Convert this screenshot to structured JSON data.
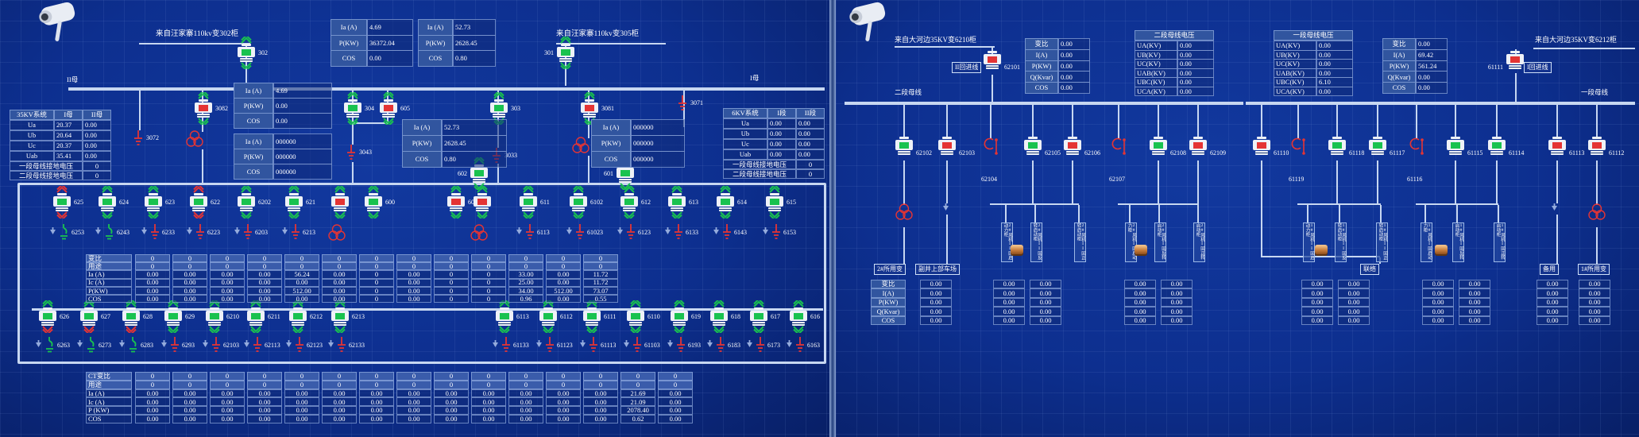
{
  "colors": {
    "green": "#19c24f",
    "red": "#e43434",
    "bus": "#c7d7f1",
    "background": "#0d2f8f"
  },
  "left": {
    "incomer_a": {
      "title": "来自汪家寨110kv变302柜",
      "breaker": "302"
    },
    "incomer_b": {
      "title": "来自汪家寨110kv变305柜",
      "breaker": "301"
    },
    "bus_left_label": "II母",
    "bus_right_label": "I母",
    "sys35": {
      "title": "35KV系统",
      "cols": [
        "I母",
        "II母"
      ],
      "rows": [
        [
          "Ua",
          "20.37",
          "0.00"
        ],
        [
          "Ub",
          "20.64",
          "0.00"
        ],
        [
          "Uc",
          "20.37",
          "0.00"
        ],
        [
          "Uab",
          "35.41",
          "0.00"
        ]
      ],
      "gnd": [
        [
          "一段母线接地电压",
          "0"
        ],
        [
          "二段母线接地电压",
          "0"
        ]
      ]
    },
    "sys6": {
      "title": "6KV系统",
      "cols": [
        "I段",
        "II段"
      ],
      "rows": [
        [
          "Ua",
          "0.00",
          "0.00"
        ],
        [
          "Ub",
          "0.00",
          "0.00"
        ],
        [
          "Uc",
          "0.00",
          "0.00"
        ],
        [
          "Uab",
          "0.00",
          "0.00"
        ]
      ],
      "gnd": [
        [
          "一段母线接地电压",
          "0"
        ],
        [
          "二段母线接地电压",
          "0"
        ]
      ]
    },
    "meter_top_a": [
      [
        "Ia (A)",
        "4.69"
      ],
      [
        "P(KW)",
        "36372.04"
      ],
      [
        "COS",
        "0.00"
      ]
    ],
    "meter_top_b": [
      [
        "Ia (A)",
        "52.73"
      ],
      [
        "P(KW)",
        "2628.45"
      ],
      [
        "COS",
        "0.80"
      ]
    ],
    "meter_bus_a": [
      [
        "Ia (A)",
        "4.69"
      ],
      [
        "P(KW)",
        "0.00"
      ],
      [
        "COS",
        "0.00"
      ]
    ],
    "meter_bus_b": [
      [
        "Ia (A)",
        "000000"
      ],
      [
        "P(KW)",
        "000000"
      ],
      [
        "COS",
        "000000"
      ]
    ],
    "meter_mid_a": [
      [
        "Ia (A)",
        "52.73"
      ],
      [
        "P(KW)",
        "2628.45"
      ],
      [
        "COS",
        "0.80"
      ]
    ],
    "meter_mid_b": [
      [
        "Ia (A)",
        "000000"
      ],
      [
        "P(KW)",
        "000000"
      ],
      [
        "COS",
        "000000"
      ]
    ],
    "aux": [
      {
        "id": "3082",
        "kind": "breaker",
        "color": "red"
      },
      {
        "id": "304",
        "kind": "breaker",
        "color": "green"
      },
      {
        "id": "605",
        "kind": "breaker",
        "color": "red"
      },
      {
        "id": "303",
        "kind": "breaker",
        "color": "green"
      },
      {
        "id": "3081",
        "kind": "breaker",
        "color": "red"
      },
      {
        "id": "602",
        "kind": "breaker",
        "color": "green",
        "label_left": true
      },
      {
        "id": "601",
        "kind": "breaker",
        "color": "green",
        "label_left": true
      },
      {
        "id": "3072",
        "kind": "ground",
        "color": "red"
      },
      {
        "id": "3043",
        "kind": "ground",
        "color": "red"
      },
      {
        "id": "3033",
        "kind": "ground",
        "color": "red"
      },
      {
        "id": "3071",
        "kind": "ground",
        "color": "red"
      }
    ],
    "row1": [
      {
        "id": "625",
        "color": "green",
        "arrow_top": "red",
        "arrow_bottom": "red",
        "sub": {
          "id": "6253",
          "kind": "switch",
          "color": "green"
        }
      },
      {
        "id": "624",
        "color": "green",
        "arrow_top": "green",
        "arrow_bottom": "green",
        "sub": {
          "id": "6243",
          "kind": "switch",
          "color": "green"
        }
      },
      {
        "id": "623",
        "color": "green",
        "arrow_top": "green",
        "arrow_bottom": "green",
        "sub": {
          "id": "6233",
          "kind": "ground",
          "color": "red"
        }
      },
      {
        "id": "622",
        "color": "green",
        "arrow_top": "red",
        "arrow_bottom": "red",
        "sub": {
          "id": "6223",
          "kind": "ground",
          "color": "red"
        }
      },
      {
        "id": "6202",
        "color": "green",
        "arrow_top": "green",
        "arrow_bottom": "green",
        "sub": {
          "id": "6203",
          "kind": "ground",
          "color": "red"
        }
      },
      {
        "id": "621",
        "color": "green",
        "arrow_top": "green",
        "arrow_bottom": "green",
        "sub": {
          "id": "6213",
          "kind": "ground",
          "color": "red"
        }
      },
      {
        "id": "",
        "color": "red",
        "arrow_top": "green",
        "arrow_bottom": "green",
        "sub": {
          "id": "",
          "kind": "transformer",
          "color": "red"
        }
      },
      {
        "id": "600",
        "color": "green",
        "arrow_top": "green",
        "arrow_bottom": "green",
        "sub": null
      },
      {
        "id": "601",
        "color": "red",
        "arrow_top": "green",
        "arrow_bottom": "green",
        "sub": null
      },
      {
        "id": "",
        "color": "red",
        "arrow_top": "green",
        "arrow_bottom": "green",
        "sub": {
          "id": "",
          "kind": "transformer",
          "color": "red"
        }
      },
      {
        "id": "611",
        "color": "green",
        "arrow_top": "green",
        "arrow_bottom": "green",
        "sub": {
          "id": "6113",
          "kind": "ground",
          "color": "red"
        }
      },
      {
        "id": "6102",
        "color": "green",
        "arrow_top": "green",
        "arrow_bottom": "green",
        "sub": {
          "id": "61023",
          "kind": "ground",
          "color": "red"
        }
      },
      {
        "id": "612",
        "color": "green",
        "arrow_top": "green",
        "arrow_bottom": "green",
        "sub": {
          "id": "6123",
          "kind": "ground",
          "color": "red"
        }
      },
      {
        "id": "613",
        "color": "green",
        "arrow_top": "green",
        "arrow_bottom": "green",
        "sub": {
          "id": "6133",
          "kind": "ground",
          "color": "red"
        }
      },
      {
        "id": "614",
        "color": "green",
        "arrow_top": "green",
        "arrow_bottom": "green",
        "sub": {
          "id": "6143",
          "kind": "ground",
          "color": "red"
        }
      },
      {
        "id": "615",
        "color": "green",
        "arrow_top": "green",
        "arrow_bottom": "green",
        "sub": {
          "id": "6153",
          "kind": "ground",
          "color": "red"
        }
      }
    ],
    "row2": [
      {
        "id": "626",
        "color": "green",
        "arrow_top": "green",
        "arrow_bottom": "red",
        "sub": {
          "id": "6263",
          "kind": "switch",
          "color": "green"
        }
      },
      {
        "id": "627",
        "color": "green",
        "arrow_top": "green",
        "arrow_bottom": "red",
        "sub": {
          "id": "6273",
          "kind": "switch",
          "color": "green"
        }
      },
      {
        "id": "628",
        "color": "green",
        "arrow_top": "green",
        "arrow_bottom": "red",
        "sub": {
          "id": "6283",
          "kind": "switch",
          "color": "green"
        }
      },
      {
        "id": "629",
        "color": "green",
        "arrow_top": "green",
        "arrow_bottom": "green",
        "sub": {
          "id": "6293",
          "kind": "ground",
          "color": "red"
        }
      },
      {
        "id": "6210",
        "color": "green",
        "arrow_top": "green",
        "arrow_bottom": "green",
        "sub": {
          "id": "62103",
          "kind": "ground",
          "color": "red"
        }
      },
      {
        "id": "6211",
        "color": "green",
        "arrow_top": "green",
        "arrow_bottom": "green",
        "sub": {
          "id": "62113",
          "kind": "ground",
          "color": "red"
        }
      },
      {
        "id": "6212",
        "color": "green",
        "arrow_top": "green",
        "arrow_bottom": "green",
        "sub": {
          "id": "62123",
          "kind": "ground",
          "color": "red"
        }
      },
      {
        "id": "6213",
        "color": "green",
        "arrow_top": "green",
        "arrow_bottom": "green",
        "sub": {
          "id": "62133",
          "kind": "ground",
          "color": "red"
        }
      },
      {
        "id": "6113",
        "color": "green",
        "arrow_top": "green",
        "arrow_bottom": "green",
        "sub": {
          "id": "61133",
          "kind": "ground",
          "color": "red"
        }
      },
      {
        "id": "6112",
        "color": "green",
        "arrow_top": "green",
        "arrow_bottom": "green",
        "sub": {
          "id": "61123",
          "kind": "ground",
          "color": "red"
        }
      },
      {
        "id": "6111",
        "color": "green",
        "arrow_top": "green",
        "arrow_bottom": "green",
        "sub": {
          "id": "61113",
          "kind": "ground",
          "color": "red"
        }
      },
      {
        "id": "6110",
        "color": "green",
        "arrow_top": "green",
        "arrow_bottom": "green",
        "sub": {
          "id": "61103",
          "kind": "ground",
          "color": "red"
        }
      },
      {
        "id": "619",
        "color": "green",
        "arrow_top": "green",
        "arrow_bottom": "green",
        "sub": {
          "id": "6193",
          "kind": "ground",
          "color": "red"
        }
      },
      {
        "id": "618",
        "color": "green",
        "arrow_top": "green",
        "arrow_bottom": "green",
        "sub": {
          "id": "6183",
          "kind": "ground",
          "color": "red"
        }
      },
      {
        "id": "617",
        "color": "green",
        "arrow_top": "green",
        "arrow_bottom": "green",
        "sub": {
          "id": "6173",
          "kind": "ground",
          "color": "red"
        }
      },
      {
        "id": "616",
        "color": "green",
        "arrow_top": "green",
        "arrow_bottom": "green",
        "sub": {
          "id": "6163",
          "kind": "ground",
          "color": "red"
        }
      }
    ],
    "mid_table": {
      "row_labels": [
        "变比",
        "用途",
        "Ia (A)",
        "Ic (A)",
        "P(KW)",
        "COS"
      ],
      "columns": [
        [
          "0",
          "0",
          "0.00",
          "0.00",
          "0.00",
          "0.00"
        ],
        [
          "0",
          "0",
          "0.00",
          "0.00",
          "0.00",
          "0.00"
        ],
        [
          "0",
          "0",
          "0.00",
          "0.00",
          "0.00",
          "0.00"
        ],
        [
          "0",
          "0",
          "0.00",
          "0.00",
          "0.00",
          "0.00"
        ],
        [
          "0",
          "0",
          "56.24",
          "0.00",
          "512.00",
          "0.00"
        ],
        [
          "0",
          "0",
          "0.00",
          "0.00",
          "0.00",
          "0.00"
        ],
        [
          "0",
          "0",
          "0",
          "0",
          "0",
          "0"
        ],
        [
          "0",
          "0",
          "0.00",
          "0.00",
          "0.00",
          "0.00"
        ],
        [
          "0",
          "0",
          "0",
          "0",
          "0",
          "0"
        ],
        [
          "0",
          "0",
          "0",
          "0",
          "0",
          "0"
        ],
        [
          "0",
          "0",
          "33.00",
          "25.00",
          "34.00",
          "0.96"
        ],
        [
          "0",
          "0",
          "0.00",
          "0.00",
          "512.00",
          "0.00"
        ],
        [
          "0",
          "0",
          "11.72",
          "11.72",
          "73.07",
          "0.55"
        ]
      ]
    },
    "bottom_table": {
      "row_labels": [
        "CT变比",
        "用途",
        "Ia (A)",
        "Ic (A)",
        "P (KW)",
        "COS"
      ],
      "columns": [
        [
          "0",
          "0",
          "0.00",
          "0.00",
          "0.00",
          "0.00"
        ],
        [
          "0",
          "0",
          "0.00",
          "0.00",
          "0.00",
          "0.00"
        ],
        [
          "0",
          "0",
          "0.00",
          "0.00",
          "0.00",
          "0.00"
        ],
        [
          "0",
          "0",
          "0.00",
          "0.00",
          "0.00",
          "0.00"
        ],
        [
          "0",
          "0",
          "0.00",
          "0.00",
          "0.00",
          "0.00"
        ],
        [
          "0",
          "0",
          "0.00",
          "0.00",
          "0.00",
          "0.00"
        ],
        [
          "0",
          "0",
          "0.00",
          "0.00",
          "0.00",
          "0.00"
        ],
        [
          "0",
          "0",
          "0.00",
          "0.00",
          "0.00",
          "0.00"
        ],
        [
          "0",
          "0",
          "0.00",
          "0.00",
          "0.00",
          "0.00"
        ],
        [
          "0",
          "0",
          "0.00",
          "0.00",
          "0.00",
          "0.00"
        ],
        [
          "0",
          "0",
          "0.00",
          "0.00",
          "0.00",
          "0.00"
        ],
        [
          "0",
          "0",
          "0.00",
          "0.00",
          "0.00",
          "0.00"
        ],
        [
          "0",
          "0",
          "0.00",
          "0.00",
          "0.00",
          "0.00"
        ],
        [
          "0",
          "0",
          "21.69",
          "21.09",
          "2078.40",
          "0.62"
        ],
        [
          "0",
          "0",
          "0.00",
          "0.00",
          "0.00",
          "0.00"
        ]
      ]
    }
  },
  "right": {
    "incomer_a": {
      "title": "来自大河边35KV变6210柜",
      "tag": "II回进线",
      "breaker": "62101"
    },
    "incomer_b": {
      "title": "来自大河边35KV变6212柜",
      "tag": "I回进线",
      "breaker": "61111"
    },
    "bus_left_label": "二段母线",
    "bus_right_label": "一段母线",
    "volt2": {
      "title": "二段母线电压",
      "rows": [
        [
          "UA(KV)",
          "0.00"
        ],
        [
          "UB(KV)",
          "0.00"
        ],
        [
          "UC(KV)",
          "0.00"
        ],
        [
          "UAB(KV)",
          "0.00"
        ],
        [
          "UBC(KV)",
          "0.00"
        ],
        [
          "UCA(KV)",
          "0.00"
        ]
      ]
    },
    "volt1": {
      "title": "一段母线电压",
      "rows": [
        [
          "UA(KV)",
          "0.00"
        ],
        [
          "UB(KV)",
          "0.00"
        ],
        [
          "UC(KV)",
          "0.00"
        ],
        [
          "UAB(KV)",
          "0.00"
        ],
        [
          "UBC(KV)",
          "6.10"
        ],
        [
          "UCA(KV)",
          "0.00"
        ]
      ]
    },
    "meter_a": [
      [
        "变比",
        "0.00"
      ],
      [
        "I(A)",
        "0.00"
      ],
      [
        "P(KW)",
        "0.00"
      ],
      [
        "Q(Kvar)",
        "0.00"
      ],
      [
        "COS",
        "0.00"
      ]
    ],
    "meter_b": [
      [
        "变比",
        "0.00"
      ],
      [
        "I(A)",
        "69.42"
      ],
      [
        "P(KW)",
        "561.24"
      ],
      [
        "Q(Kvar)",
        "0.00"
      ],
      [
        "COS",
        "0.00"
      ]
    ],
    "columns": [
      {
        "id": "62102",
        "kind": "breaker",
        "color": "green"
      },
      {
        "id": "62103",
        "kind": "breaker",
        "color": "red"
      },
      {
        "id": "62104",
        "kind": "switch"
      },
      {
        "id": "62105",
        "kind": "breaker",
        "color": "green"
      },
      {
        "id": "62106",
        "kind": "breaker",
        "color": "red"
      },
      {
        "id": "62107",
        "kind": "switch"
      },
      {
        "id": "62108",
        "kind": "breaker",
        "color": "green"
      },
      {
        "id": "62109",
        "kind": "breaker",
        "color": "red"
      },
      {
        "id": "61110",
        "kind": "breaker",
        "color": "red"
      },
      {
        "id": "61119",
        "kind": "switch"
      },
      {
        "id": "61118",
        "kind": "breaker",
        "color": "green"
      },
      {
        "id": "61117",
        "kind": "breaker",
        "color": "green"
      },
      {
        "id": "61116",
        "kind": "switch"
      },
      {
        "id": "61115",
        "kind": "breaker",
        "color": "green"
      },
      {
        "id": "61114",
        "kind": "breaker",
        "color": "green"
      },
      {
        "id": "61113",
        "kind": "breaker",
        "color": "red"
      },
      {
        "id": "61112",
        "kind": "breaker",
        "color": "red"
      }
    ],
    "fan_boxes": [
      "2#风机II回启动力柜",
      "2#风机II回反转启动柜",
      "2#风机II回正转启动柜",
      "2#风机I回启动力柜",
      "2#风机I回反转启动柜",
      "2#风机I回正转启动柜",
      "1#风机II回启动力柜",
      "1#风机II回反转启动柜",
      "1#风机II回正转启动柜",
      "1#风机I回启动力柜",
      "1#风机I回反转启动柜",
      "1#风机I回正转启动柜"
    ],
    "load_boxes": [
      "2#所用变",
      "副井上部车场",
      "联络",
      "备用",
      "1#所用变"
    ],
    "bottom_table": {
      "row_labels": [
        "变比",
        "I(A)",
        "P(KW)",
        "Q(Kvar)",
        "COS"
      ],
      "columns": [
        [
          "0.00",
          "0.00",
          "0.00",
          "0.00",
          "0.00"
        ],
        [
          "0.00",
          "0.00",
          "0.00",
          "0.00",
          "0.00"
        ],
        [
          "0.00",
          "0.00",
          "0.00",
          "0.00",
          "0.00"
        ],
        [
          "0.00",
          "0.00",
          "0.00",
          "0.00",
          "0.00"
        ],
        [
          "0.00",
          "0.00",
          "0.00",
          "0.00",
          "0.00"
        ],
        [
          "0.00",
          "0.00",
          "0.00",
          "0.00",
          "0.00"
        ],
        [
          "0.00",
          "0.00",
          "0.00",
          "0.00",
          "0.00"
        ],
        [
          "0.00",
          "0.00",
          "0.00",
          "0.00",
          "0.00"
        ],
        [
          "0.00",
          "0.00",
          "0.00",
          "0.00",
          "0.00"
        ],
        [
          "0.00",
          "0.00",
          "0.00",
          "0.00",
          "0.00"
        ],
        [
          "0.00",
          "0.00",
          "0.00",
          "0.00",
          "0.00"
        ]
      ]
    }
  }
}
